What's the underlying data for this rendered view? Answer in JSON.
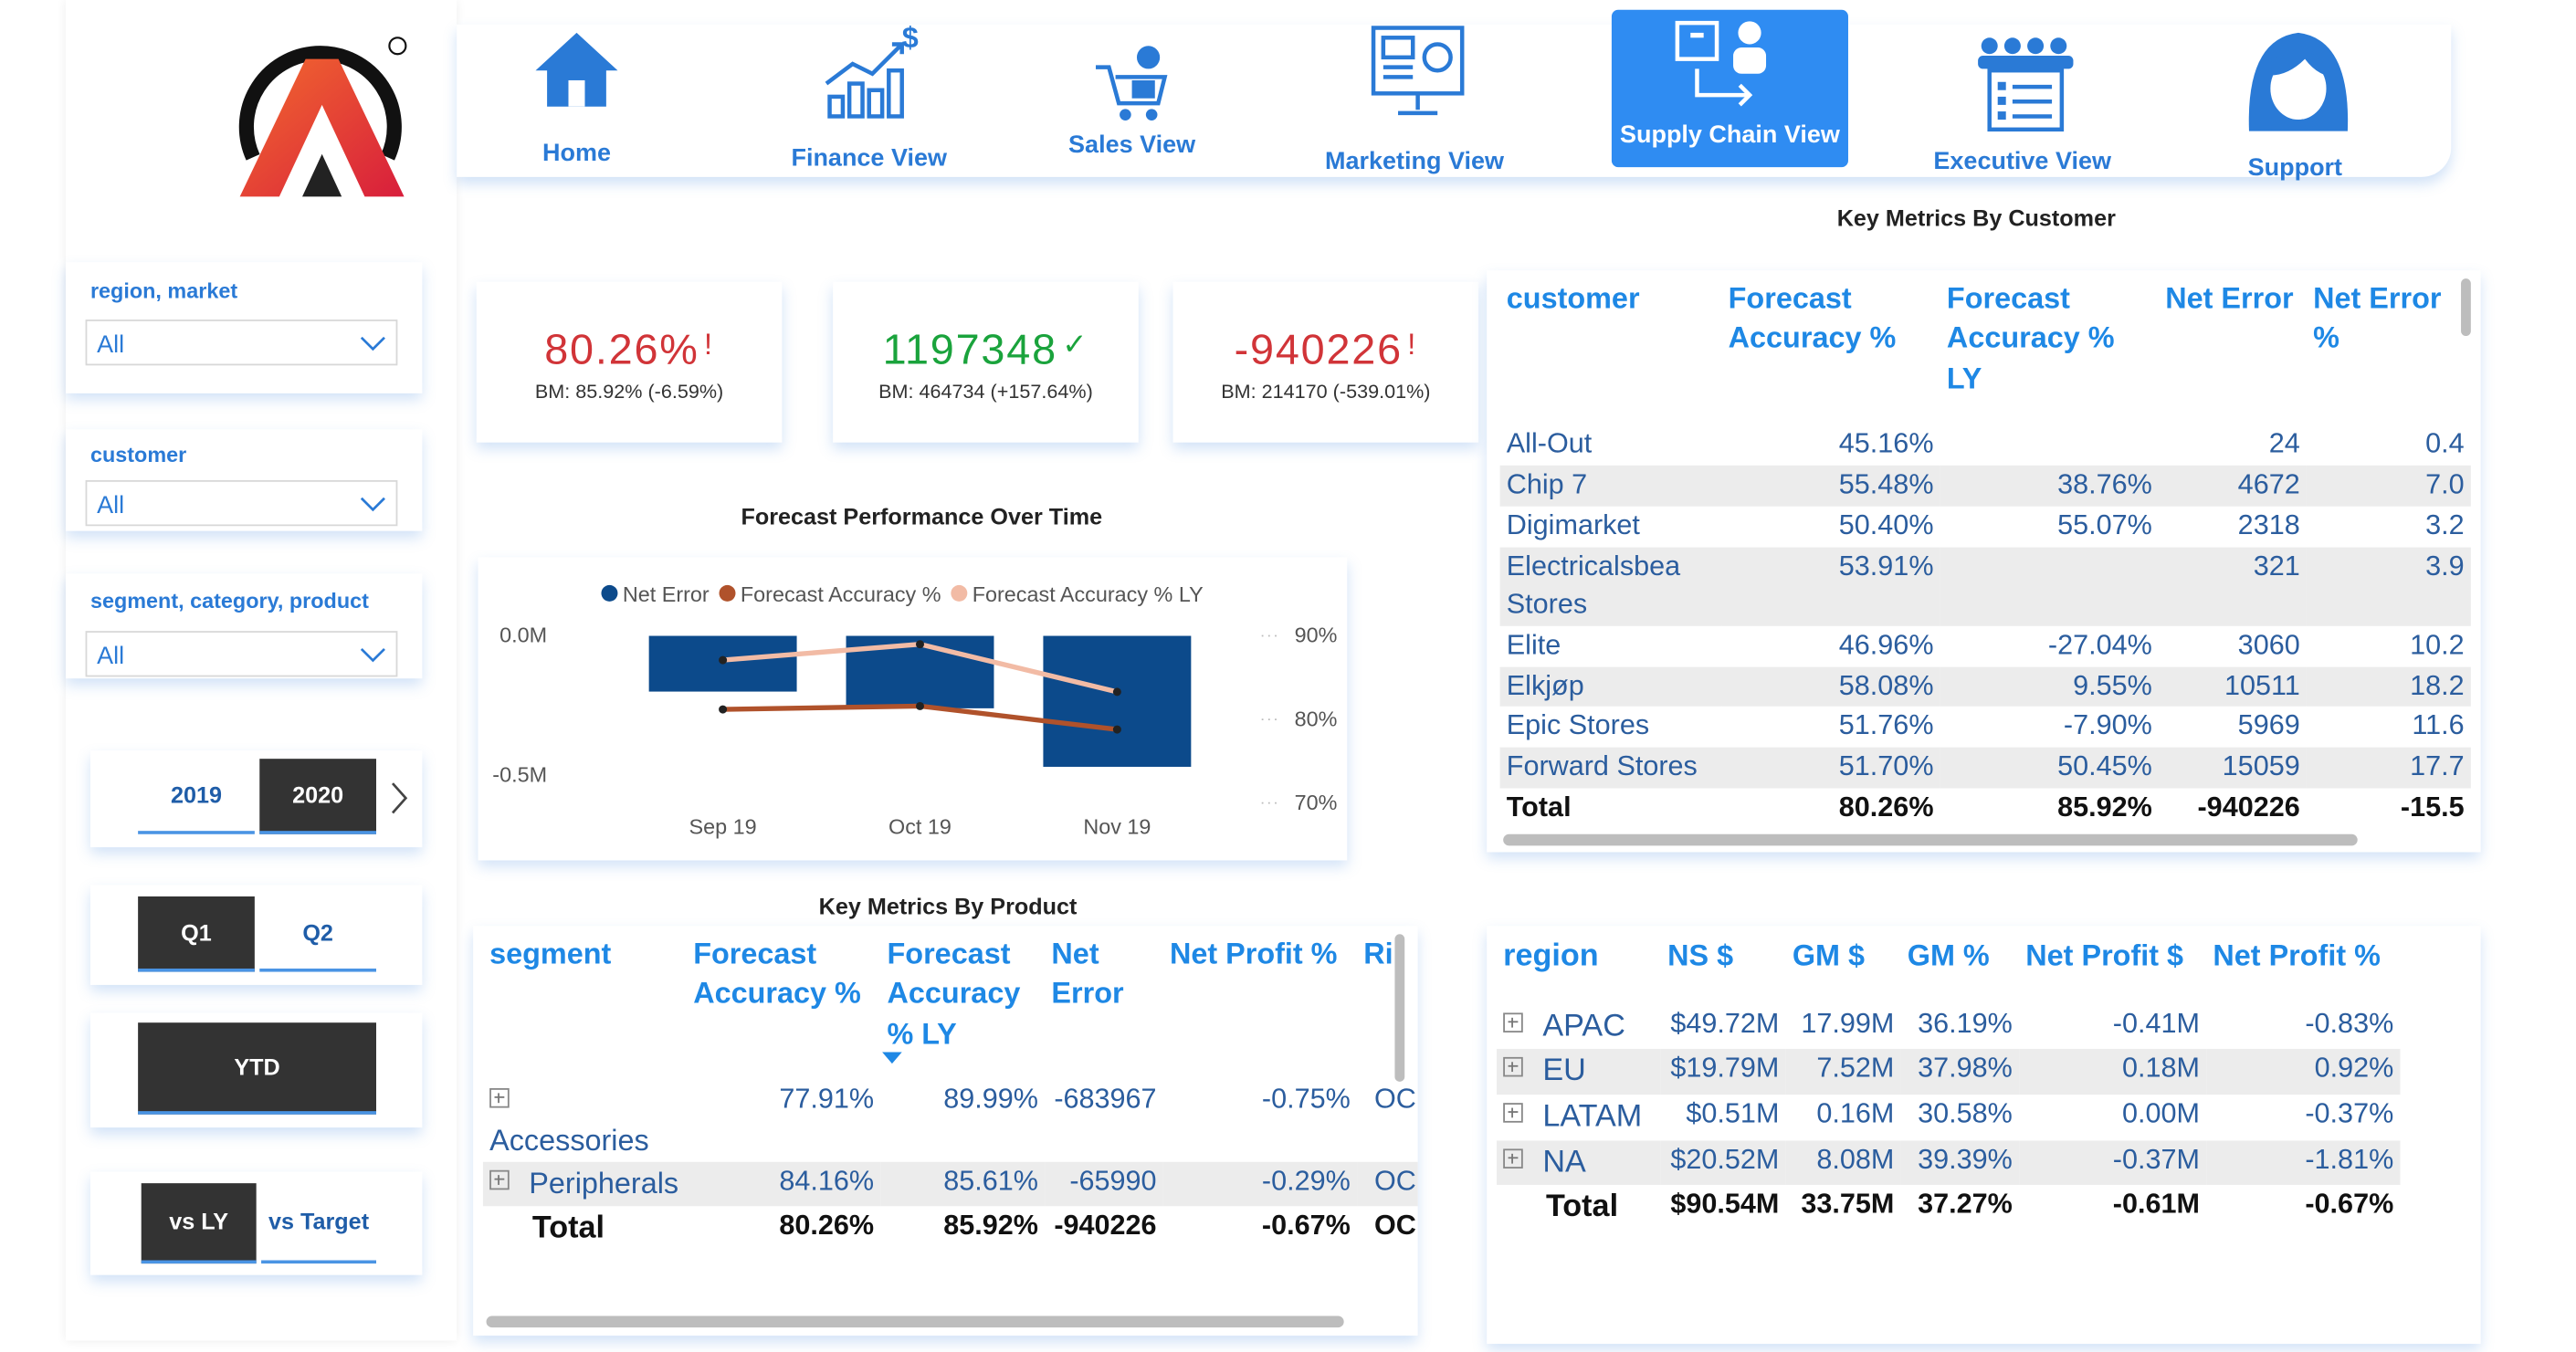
{
  "nav": [
    {
      "label": "Home",
      "selected": false
    },
    {
      "label": "Finance View",
      "selected": false
    },
    {
      "label": "Sales View",
      "selected": false
    },
    {
      "label": "Marketing View",
      "selected": false
    },
    {
      "label": "Supply Chain View",
      "selected": true
    },
    {
      "label": "Executive View",
      "selected": false
    },
    {
      "label": "Support",
      "selected": false
    }
  ],
  "filters": [
    {
      "label": "region, market",
      "value": "All"
    },
    {
      "label": "customer",
      "value": "All"
    },
    {
      "label": "segment, category, product",
      "value": "All"
    }
  ],
  "slicers": {
    "years": [
      {
        "label": "2019",
        "selected": false
      },
      {
        "label": "2020",
        "selected": true
      }
    ],
    "quarters": [
      {
        "label": "Q1",
        "selected": true
      },
      {
        "label": "Q2",
        "selected": false
      }
    ],
    "ytd": [
      {
        "label": "YTD",
        "selected": true
      }
    ],
    "compare": [
      {
        "label": "vs LY",
        "selected": true
      },
      {
        "label": "vs Target",
        "selected": false
      }
    ]
  },
  "kpis": [
    {
      "value": "80.26%",
      "indicator": "!",
      "color": "#d13438",
      "benchmark": "BM: 85.92% (-6.59%)"
    },
    {
      "value": "1197348",
      "indicator": "✓",
      "color": "#1aa33c",
      "benchmark": "BM: 464734 (+157.64%)"
    },
    {
      "value": "-940226",
      "indicator": "!",
      "color": "#d13438",
      "benchmark": "BM: 214170 (-539.01%)"
    }
  ],
  "chart_data": {
    "type": "combo",
    "title": "Forecast Performance Over Time",
    "categories": [
      "Sep 19",
      "Oct 19",
      "Nov 19"
    ],
    "series": [
      {
        "name": "Net Error",
        "type": "bar",
        "color": "#0c4a8b",
        "values": [
          -0.2,
          -0.26,
          -0.47
        ]
      },
      {
        "name": "Forecast Accuracy %",
        "type": "line",
        "axis": "y2",
        "color": "#b0522b",
        "values": [
          81.2,
          81.6,
          78.8
        ]
      },
      {
        "name": "Forecast Accuracy % LY",
        "type": "line",
        "axis": "y2",
        "color": "#f2bba5",
        "values": [
          87.1,
          89.0,
          83.3
        ]
      }
    ],
    "ylim": [
      -0.6,
      0
    ],
    "yticks": [
      {
        "value": 0,
        "label": "0.0M"
      },
      {
        "value": -0.5,
        "label": "-0.5M"
      }
    ],
    "y2lim": [
      70,
      90
    ],
    "y2ticks": [
      {
        "value": 90,
        "label": "90%"
      },
      {
        "value": 80,
        "label": "80%"
      },
      {
        "value": 70,
        "label": "70%"
      }
    ],
    "legend": "top"
  },
  "customer_table": {
    "title": "Key Metrics By Customer",
    "columns": [
      "customer",
      "Forecast Accuracy %",
      "Forecast Accuracy % LY",
      "Net Error",
      "Net Error %"
    ],
    "rows": [
      [
        "All-Out",
        "45.16%",
        null,
        "24",
        "0.4"
      ],
      [
        "Chip 7",
        "55.48%",
        "38.76%",
        "4672",
        "7.0"
      ],
      [
        "Digimarket",
        "50.40%",
        "55.07%",
        "2318",
        "3.2"
      ],
      [
        "Electricalsbea Stores",
        "53.91%",
        null,
        "321",
        "3.9"
      ],
      [
        "Elite",
        "46.96%",
        "-27.04%",
        "3060",
        "10.2"
      ],
      [
        "Elkjøp",
        "58.08%",
        "9.55%",
        "10511",
        "18.2"
      ],
      [
        "Epic Stores",
        "51.76%",
        "-7.90%",
        "5969",
        "11.6"
      ],
      [
        "Forward Stores",
        "51.70%",
        "50.45%",
        "15059",
        "17.7"
      ]
    ],
    "total": [
      "Total",
      "80.26%",
      "85.92%",
      "-940226",
      "-15.5"
    ]
  },
  "product_table": {
    "title": "Key Metrics By Product",
    "columns": [
      "segment",
      "Forecast Accuracy %",
      "Forecast Accuracy % LY",
      "Net Error",
      "Net Profit %",
      "Ri"
    ],
    "rows": [
      [
        "Accessories",
        "77.91%",
        "89.99%",
        "-683967",
        "-0.75%",
        "OC"
      ],
      [
        "Peripherals",
        "84.16%",
        "85.61%",
        "-65990",
        "-0.29%",
        "OC"
      ]
    ],
    "total": [
      "Total",
      "80.26%",
      "85.92%",
      "-940226",
      "-0.67%",
      "OC"
    ]
  },
  "region_table": {
    "columns": [
      "region",
      "NS $",
      "GM $",
      "GM %",
      "Net Profit $",
      "Net Profit %"
    ],
    "rows": [
      [
        "APAC",
        "$49.72M",
        "17.99M",
        "36.19%",
        "-0.41M",
        "-0.83%"
      ],
      [
        "EU",
        "$19.79M",
        "7.52M",
        "37.98%",
        "0.18M",
        "0.92%"
      ],
      [
        "LATAM",
        "$0.51M",
        "0.16M",
        "30.58%",
        "0.00M",
        "-0.37%"
      ],
      [
        "NA",
        "$20.52M",
        "8.08M",
        "39.39%",
        "-0.37M",
        "-1.81%"
      ]
    ],
    "total": [
      "Total",
      "$90.54M",
      "33.75M",
      "37.27%",
      "-0.61M",
      "-0.67%"
    ]
  }
}
